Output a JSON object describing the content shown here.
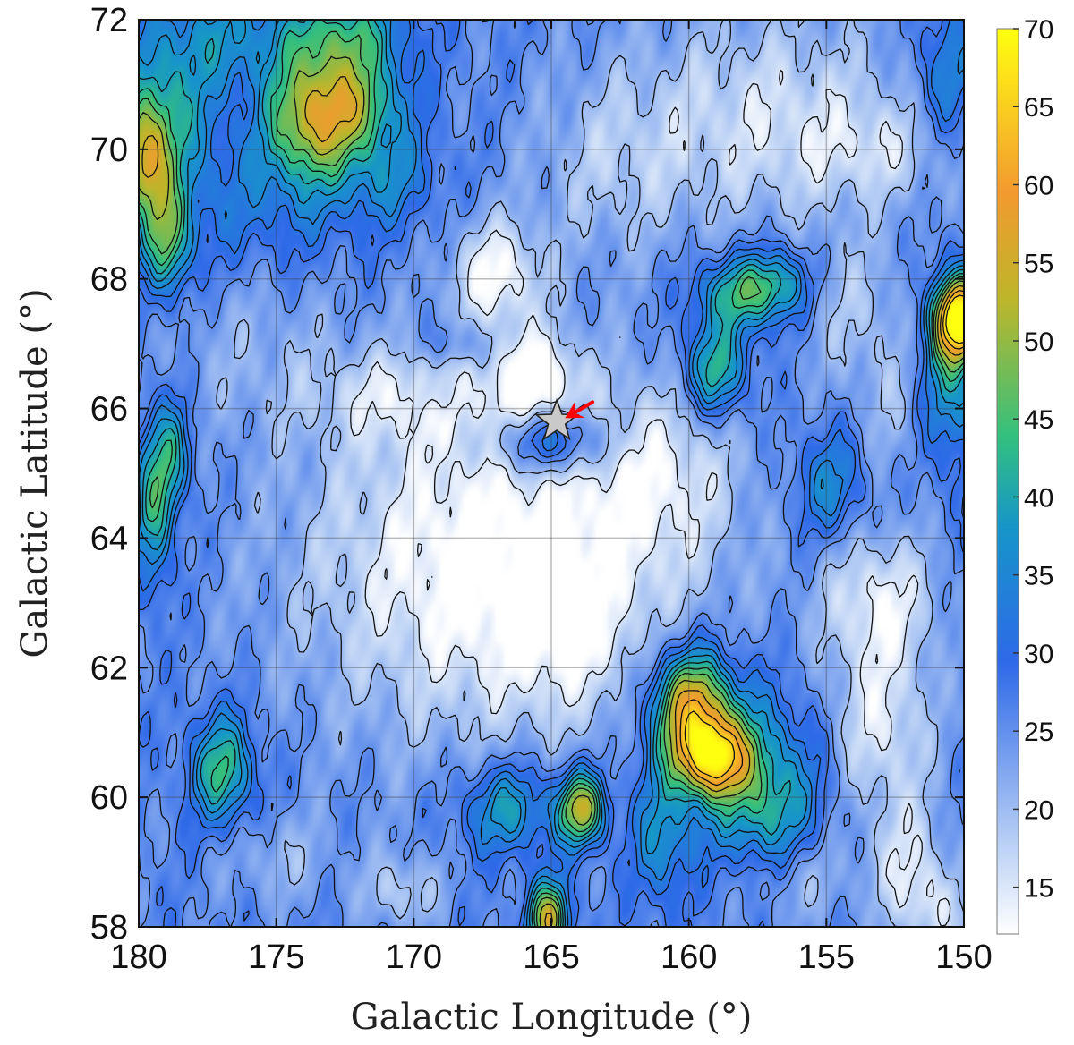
{
  "chart_data": {
    "type": "heatmap",
    "subtype": "filled-contour",
    "title": "",
    "xlabel": "Galactic Longitude (°)",
    "ylabel": "Galactic Latitude (°)",
    "xlim": [
      180,
      150
    ],
    "ylim": [
      58,
      72
    ],
    "x_reversed": true,
    "xticks": [
      180,
      175,
      170,
      165,
      160,
      155,
      150
    ],
    "yticks": [
      58,
      60,
      62,
      64,
      66,
      68,
      70,
      72
    ],
    "grid": true,
    "colorbar": {
      "range": [
        12,
        70
      ],
      "ticks": [
        15,
        20,
        25,
        30,
        35,
        40,
        45,
        50,
        55,
        60,
        65,
        70
      ],
      "colors": [
        "#ffffff",
        "#b9d0f5",
        "#2e69e8",
        "#1696c9",
        "#33c07e",
        "#bdb62a",
        "#f39a2f",
        "#ffff10"
      ],
      "color_stops": [
        0,
        0.1,
        0.3,
        0.45,
        0.55,
        0.7,
        0.82,
        1.0
      ]
    },
    "contour_levels": [
      15,
      20,
      25,
      28,
      31,
      34,
      37,
      40,
      43,
      46,
      50,
      55,
      60,
      65
    ],
    "background_level": 26,
    "features": [
      {
        "type": "peak",
        "l": 150.1,
        "b": 67.4,
        "amp": 44,
        "sl": 0.6,
        "sb": 0.4
      },
      {
        "type": "peak",
        "l": 150.4,
        "b": 66.6,
        "amp": 14,
        "sl": 0.8,
        "sb": 1.0
      },
      {
        "type": "peak",
        "l": 150.6,
        "b": 71.2,
        "amp": 10,
        "sl": 0.8,
        "sb": 0.8
      },
      {
        "type": "peak",
        "l": 159.9,
        "b": 61.4,
        "amp": 30,
        "sl": 1.0,
        "sb": 0.6
      },
      {
        "type": "peak",
        "l": 159.1,
        "b": 60.6,
        "amp": 30,
        "sl": 0.9,
        "sb": 0.4
      },
      {
        "type": "peak",
        "l": 158.0,
        "b": 60.4,
        "amp": 14,
        "sl": 2.0,
        "sb": 0.9
      },
      {
        "type": "peak",
        "l": 157.0,
        "b": 59.6,
        "amp": 8,
        "sl": 1.0,
        "sb": 0.6
      },
      {
        "type": "peak",
        "l": 163.9,
        "b": 59.8,
        "amp": 28,
        "sl": 0.6,
        "sb": 0.4
      },
      {
        "type": "peak",
        "l": 165.1,
        "b": 58.1,
        "amp": 28,
        "sl": 0.5,
        "sb": 0.4
      },
      {
        "type": "peak",
        "l": 166.6,
        "b": 59.8,
        "amp": 14,
        "sl": 1.2,
        "sb": 0.5
      },
      {
        "type": "peak",
        "l": 161.0,
        "b": 59.3,
        "amp": 10,
        "sl": 0.7,
        "sb": 0.7
      },
      {
        "type": "peak",
        "l": 165.0,
        "b": 65.5,
        "amp": 16,
        "sl": 1.4,
        "sb": 0.35
      },
      {
        "type": "peak",
        "l": 173.8,
        "b": 70.5,
        "amp": 24,
        "sl": 1.2,
        "sb": 0.7
      },
      {
        "type": "peak",
        "l": 172.0,
        "b": 70.7,
        "amp": 16,
        "sl": 1.2,
        "sb": 0.5
      },
      {
        "type": "peak",
        "l": 172.5,
        "b": 71.8,
        "amp": 16,
        "sl": 1.5,
        "sb": 0.5
      },
      {
        "type": "peak",
        "l": 179.8,
        "b": 69.8,
        "amp": 22,
        "sl": 0.6,
        "sb": 0.6
      },
      {
        "type": "peak",
        "l": 179.2,
        "b": 70.6,
        "amp": 14,
        "sl": 1.2,
        "sb": 0.8
      },
      {
        "type": "peak",
        "l": 179.0,
        "b": 68.6,
        "amp": 18,
        "sl": 0.6,
        "sb": 0.6
      },
      {
        "type": "peak",
        "l": 177.0,
        "b": 71.8,
        "amp": 10,
        "sl": 1.8,
        "sb": 0.6
      },
      {
        "type": "peak",
        "l": 158.0,
        "b": 67.8,
        "amp": 18,
        "sl": 1.2,
        "sb": 0.4
      },
      {
        "type": "peak",
        "l": 159.0,
        "b": 66.6,
        "amp": 18,
        "sl": 0.8,
        "sb": 0.5
      },
      {
        "type": "peak",
        "l": 156.6,
        "b": 68.0,
        "amp": 10,
        "sl": 0.8,
        "sb": 0.4
      },
      {
        "type": "peak",
        "l": 179.5,
        "b": 64.5,
        "amp": 16,
        "sl": 0.5,
        "sb": 0.9
      },
      {
        "type": "peak",
        "l": 178.8,
        "b": 65.3,
        "amp": 12,
        "sl": 0.5,
        "sb": 0.6
      },
      {
        "type": "peak",
        "l": 177.0,
        "b": 60.4,
        "amp": 18,
        "sl": 0.8,
        "sb": 0.6
      },
      {
        "type": "peak",
        "l": 154.8,
        "b": 64.8,
        "amp": 10,
        "sl": 0.9,
        "sb": 0.6
      },
      {
        "type": "peak",
        "l": 176.0,
        "b": 69.2,
        "amp": 6,
        "sl": 3.0,
        "sb": 0.8
      },
      {
        "type": "peak",
        "l": 171.0,
        "b": 69.6,
        "amp": 8,
        "sl": 1.2,
        "sb": 0.5
      },
      {
        "type": "peak",
        "l": 168.5,
        "b": 67.0,
        "amp": 6,
        "sl": 0.8,
        "sb": 0.25
      },
      {
        "type": "peak",
        "l": 169.2,
        "b": 66.2,
        "amp": 6,
        "sl": 0.4,
        "sb": 0.25
      },
      {
        "type": "dip",
        "l": 167.0,
        "b": 63.6,
        "amp": 16,
        "sl": 4.8,
        "sb": 1.9
      },
      {
        "type": "dip",
        "l": 164.5,
        "b": 62.5,
        "amp": 5,
        "sl": 1.5,
        "sb": 0.8
      },
      {
        "type": "dip",
        "l": 167.0,
        "b": 68.1,
        "amp": 13,
        "sl": 1.2,
        "sb": 0.6
      },
      {
        "type": "dip",
        "l": 165.5,
        "b": 66.5,
        "amp": 12,
        "sl": 1.0,
        "sb": 0.5
      },
      {
        "type": "dip",
        "l": 170.0,
        "b": 66.2,
        "amp": 8,
        "sl": 2.5,
        "sb": 0.5
      },
      {
        "type": "dip",
        "l": 161.0,
        "b": 65.0,
        "amp": 8,
        "sl": 2.0,
        "sb": 1.0
      },
      {
        "type": "dip",
        "l": 157.0,
        "b": 70.5,
        "amp": 10,
        "sl": 4.0,
        "sb": 1.2
      },
      {
        "type": "dip",
        "l": 153.0,
        "b": 70.0,
        "amp": 5,
        "sl": 2.0,
        "sb": 0.5
      },
      {
        "type": "dip",
        "l": 153.0,
        "b": 63.0,
        "amp": 12,
        "sl": 1.5,
        "sb": 0.8
      },
      {
        "type": "dip",
        "l": 153.0,
        "b": 61.0,
        "amp": 11,
        "sl": 1.4,
        "sb": 0.9
      },
      {
        "type": "dip",
        "l": 152.0,
        "b": 59.0,
        "amp": 9,
        "sl": 1.0,
        "sb": 0.7
      },
      {
        "type": "dip",
        "l": 151.0,
        "b": 58.2,
        "amp": 8,
        "sl": 1.0,
        "sb": 0.5
      },
      {
        "type": "dip",
        "l": 156.0,
        "b": 58.7,
        "amp": 6,
        "sl": 1.5,
        "sb": 0.5
      },
      {
        "type": "dip",
        "l": 170.5,
        "b": 58.5,
        "amp": 8,
        "sl": 1.0,
        "sb": 0.4
      },
      {
        "type": "dip",
        "l": 175.0,
        "b": 59.0,
        "amp": 5,
        "sl": 1.5,
        "sb": 0.5
      },
      {
        "type": "dip",
        "l": 154.0,
        "b": 67.5,
        "amp": 6,
        "sl": 1.5,
        "sb": 0.8
      },
      {
        "type": "dip",
        "l": 152.5,
        "b": 66.0,
        "amp": 5,
        "sl": 1.0,
        "sb": 0.8
      },
      {
        "type": "dip",
        "l": 176.0,
        "b": 67.0,
        "amp": 4,
        "sl": 2.5,
        "sb": 1.0
      },
      {
        "type": "dip",
        "l": 163.0,
        "b": 69.7,
        "amp": 5,
        "sl": 2.0,
        "sb": 1.0
      }
    ],
    "marker": {
      "shape": "star",
      "l": 164.8,
      "b": 65.8,
      "fill": "#c9c9c9"
    },
    "arrow": {
      "color": "#ff0000",
      "from": {
        "l": 163.5,
        "b": 66.1
      },
      "to": {
        "l": 164.5,
        "b": 65.85
      }
    }
  }
}
